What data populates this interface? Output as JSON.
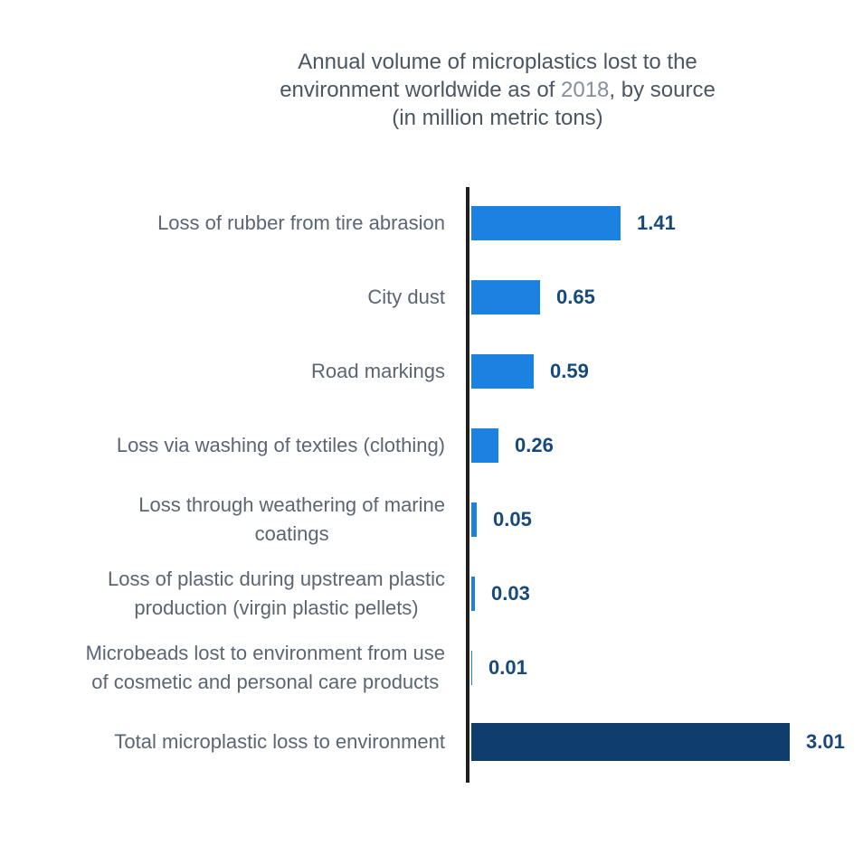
{
  "title": {
    "full_text": "Annual volume of microplastics lost to the environment worldwide as of 2018, by source (in million metric tons)",
    "lines": [
      {
        "segments": [
          {
            "text": "Annual volume of microplastics lost to the",
            "muted": false
          }
        ]
      },
      {
        "segments": [
          {
            "text": "environment worldwide as of ",
            "muted": false
          },
          {
            "text": "2018",
            "muted": true
          },
          {
            "text": ", by source",
            "muted": false
          }
        ]
      },
      {
        "segments": [
          {
            "text": "(in million metric tons)",
            "muted": false
          }
        ]
      }
    ]
  },
  "colors": {
    "bar_blue": "#1b82e2",
    "bar_navy": "#0f3e6e",
    "value_text": "#17497d",
    "category_text": "#5b6573",
    "title_text": "#4b5663",
    "title_muted": "#868f9b",
    "axis_line": "#1e1e1e",
    "background": "#ffffff"
  },
  "chart_data": {
    "type": "bar",
    "orientation": "horizontal",
    "title": "Annual volume of microplastics lost to the environment worldwide as of 2018, by source (in million metric tons)",
    "xlabel": "",
    "ylabel": "",
    "unit": "million metric tons",
    "year": "2018",
    "xlim": [
      0,
      3.2
    ],
    "grid": false,
    "legend": false,
    "categories": [
      "Loss of rubber from tire abrasion",
      "City dust",
      "Road markings",
      "Loss via washing of textiles (clothing)",
      "Loss through weathering of marine\ncoatings",
      "Loss of plastic during upstream plastic\nproduction (virgin plastic pellets)",
      "Microbeads lost to environment from use\nof cosmetic and personal care products",
      "Total microplastic loss to environment"
    ],
    "values": [
      1.41,
      0.65,
      0.59,
      0.26,
      0.05,
      0.03,
      0.01,
      3.01
    ],
    "value_labels": [
      "1.41",
      "0.65",
      "0.59",
      "0.26",
      "0.05",
      "0.03",
      "0.01",
      "3.01"
    ],
    "emphasis": [
      false,
      false,
      false,
      false,
      false,
      false,
      false,
      true
    ]
  }
}
